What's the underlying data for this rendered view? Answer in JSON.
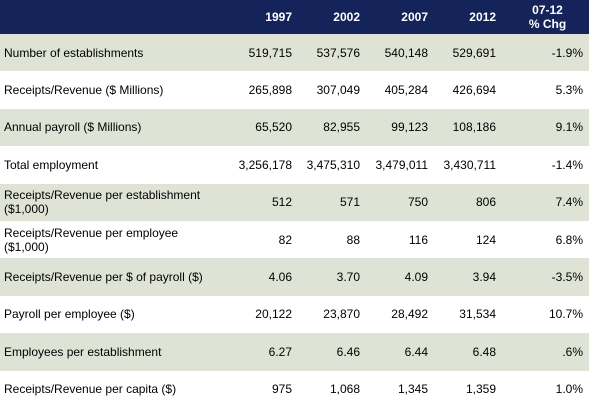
{
  "table": {
    "headers": [
      "",
      "1997",
      "2002",
      "2007",
      "2012",
      "07-12 % Chg"
    ],
    "header_chg_line1": "07-12",
    "header_chg_line2": "% Chg",
    "rows": [
      {
        "label": "Number of establishments",
        "values": [
          "519,715",
          "537,576",
          "540,148",
          "529,691",
          "-1.9%"
        ]
      },
      {
        "label": "Receipts/Revenue ($ Millions)",
        "values": [
          "265,898",
          "307,049",
          "405,284",
          "426,694",
          "5.3%"
        ]
      },
      {
        "label": "Annual payroll ($ Millions)",
        "values": [
          "65,520",
          "82,955",
          "99,123",
          "108,186",
          "9.1%"
        ]
      },
      {
        "label": "Total employment",
        "values": [
          "3,256,178",
          "3,475,310",
          "3,479,011",
          "3,430,711",
          "-1.4%"
        ]
      },
      {
        "label": "Receipts/Revenue per establishment ($1,000)",
        "values": [
          "512",
          "571",
          "750",
          "806",
          "7.4%"
        ]
      },
      {
        "label": "Receipts/Revenue per employee ($1,000)",
        "values": [
          "82",
          "88",
          "116",
          "124",
          "6.8%"
        ]
      },
      {
        "label": "Receipts/Revenue per $ of payroll ($)",
        "values": [
          "4.06",
          "3.70",
          "4.09",
          "3.94",
          "-3.5%"
        ]
      },
      {
        "label": "Payroll per employee ($)",
        "values": [
          "20,122",
          "23,870",
          "28,492",
          "31,534",
          "10.7%"
        ]
      },
      {
        "label": "Employees per establishment",
        "values": [
          "6.27",
          "6.46",
          "6.44",
          "6.48",
          ".6%"
        ]
      },
      {
        "label": "Receipts/Revenue per capita ($)",
        "values": [
          "975",
          "1,068",
          "1,345",
          "1,359",
          "1.0%"
        ]
      }
    ]
  },
  "colors": {
    "header_bg": "#14235a",
    "header_text": "#ffffff",
    "row_shade": "#dfe3d6",
    "row_plain": "#ffffff"
  }
}
